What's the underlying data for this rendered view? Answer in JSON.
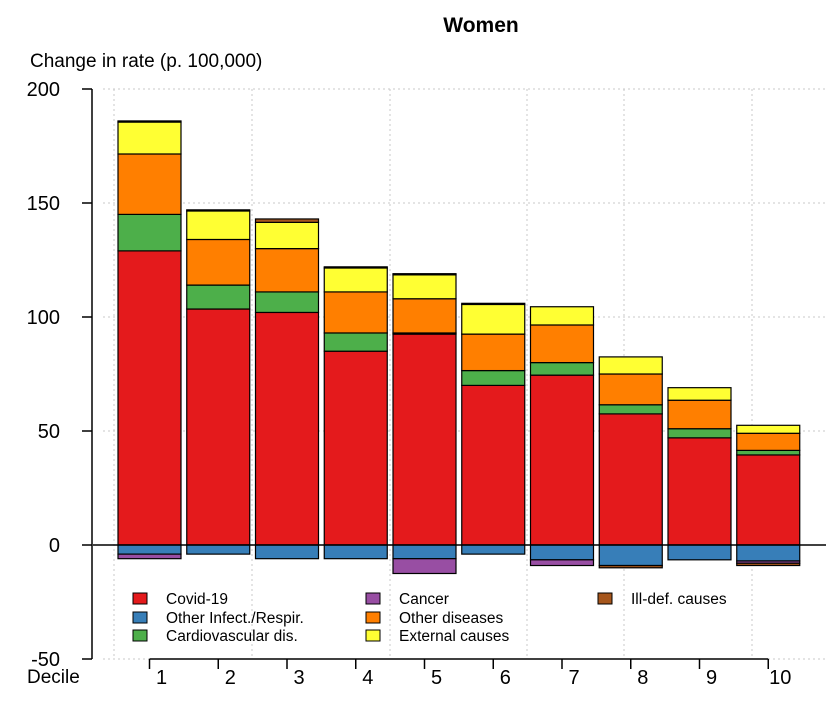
{
  "chart_data": {
    "type": "bar",
    "stacked": true,
    "title": "Women",
    "ylabel": "Change in rate (p. 100,000)",
    "xlabel": "Decile",
    "ylim": [
      -50,
      200
    ],
    "yticks": [
      -50,
      0,
      50,
      100,
      150,
      200
    ],
    "grid": true,
    "legend_position": "bottom-inside",
    "categories": [
      "1",
      "2",
      "3",
      "4",
      "5",
      "6",
      "7",
      "8",
      "9",
      "10"
    ],
    "series": [
      {
        "name": "Covid-19",
        "color": "#e41a1c",
        "values": [
          129,
          103.5,
          102,
          85,
          92.5,
          70,
          74.5,
          57.5,
          47,
          39.5
        ]
      },
      {
        "name": "Other Infect./Respir.",
        "color": "#377eb8",
        "values": [
          -4,
          -4,
          -6,
          -6,
          -6,
          -4,
          -6.5,
          -9,
          -6.5,
          -7
        ]
      },
      {
        "name": "Cardiovascular dis.",
        "color": "#4daf4a",
        "values": [
          16,
          10.5,
          9,
          8,
          0.5,
          6.5,
          5.5,
          4,
          4,
          2
        ]
      },
      {
        "name": "Cancer",
        "color": "#984ea3",
        "values": [
          -2,
          0,
          0,
          0,
          -6.5,
          0,
          -2.5,
          0,
          0,
          -1
        ]
      },
      {
        "name": "Other diseases",
        "color": "#ff7f00",
        "values": [
          26.5,
          20,
          19,
          18,
          15,
          16,
          16.5,
          13.5,
          12.5,
          7.5
        ]
      },
      {
        "name": "External causes",
        "color": "#ffff33",
        "values": [
          14,
          12.5,
          11.5,
          10.5,
          10.5,
          13,
          8,
          7.5,
          5.5,
          3.5
        ]
      },
      {
        "name": "Ill-def. causes",
        "color": "#a6561c",
        "values": [
          0.5,
          0.5,
          1.5,
          0.5,
          0.5,
          0.5,
          0,
          -1,
          0,
          -1
        ]
      }
    ],
    "legend_order": [
      "Covid-19",
      "Other Infect./Respir.",
      "Cardiovascular dis.",
      "Cancer",
      "Other diseases",
      "External causes",
      "Ill-def. causes"
    ]
  }
}
